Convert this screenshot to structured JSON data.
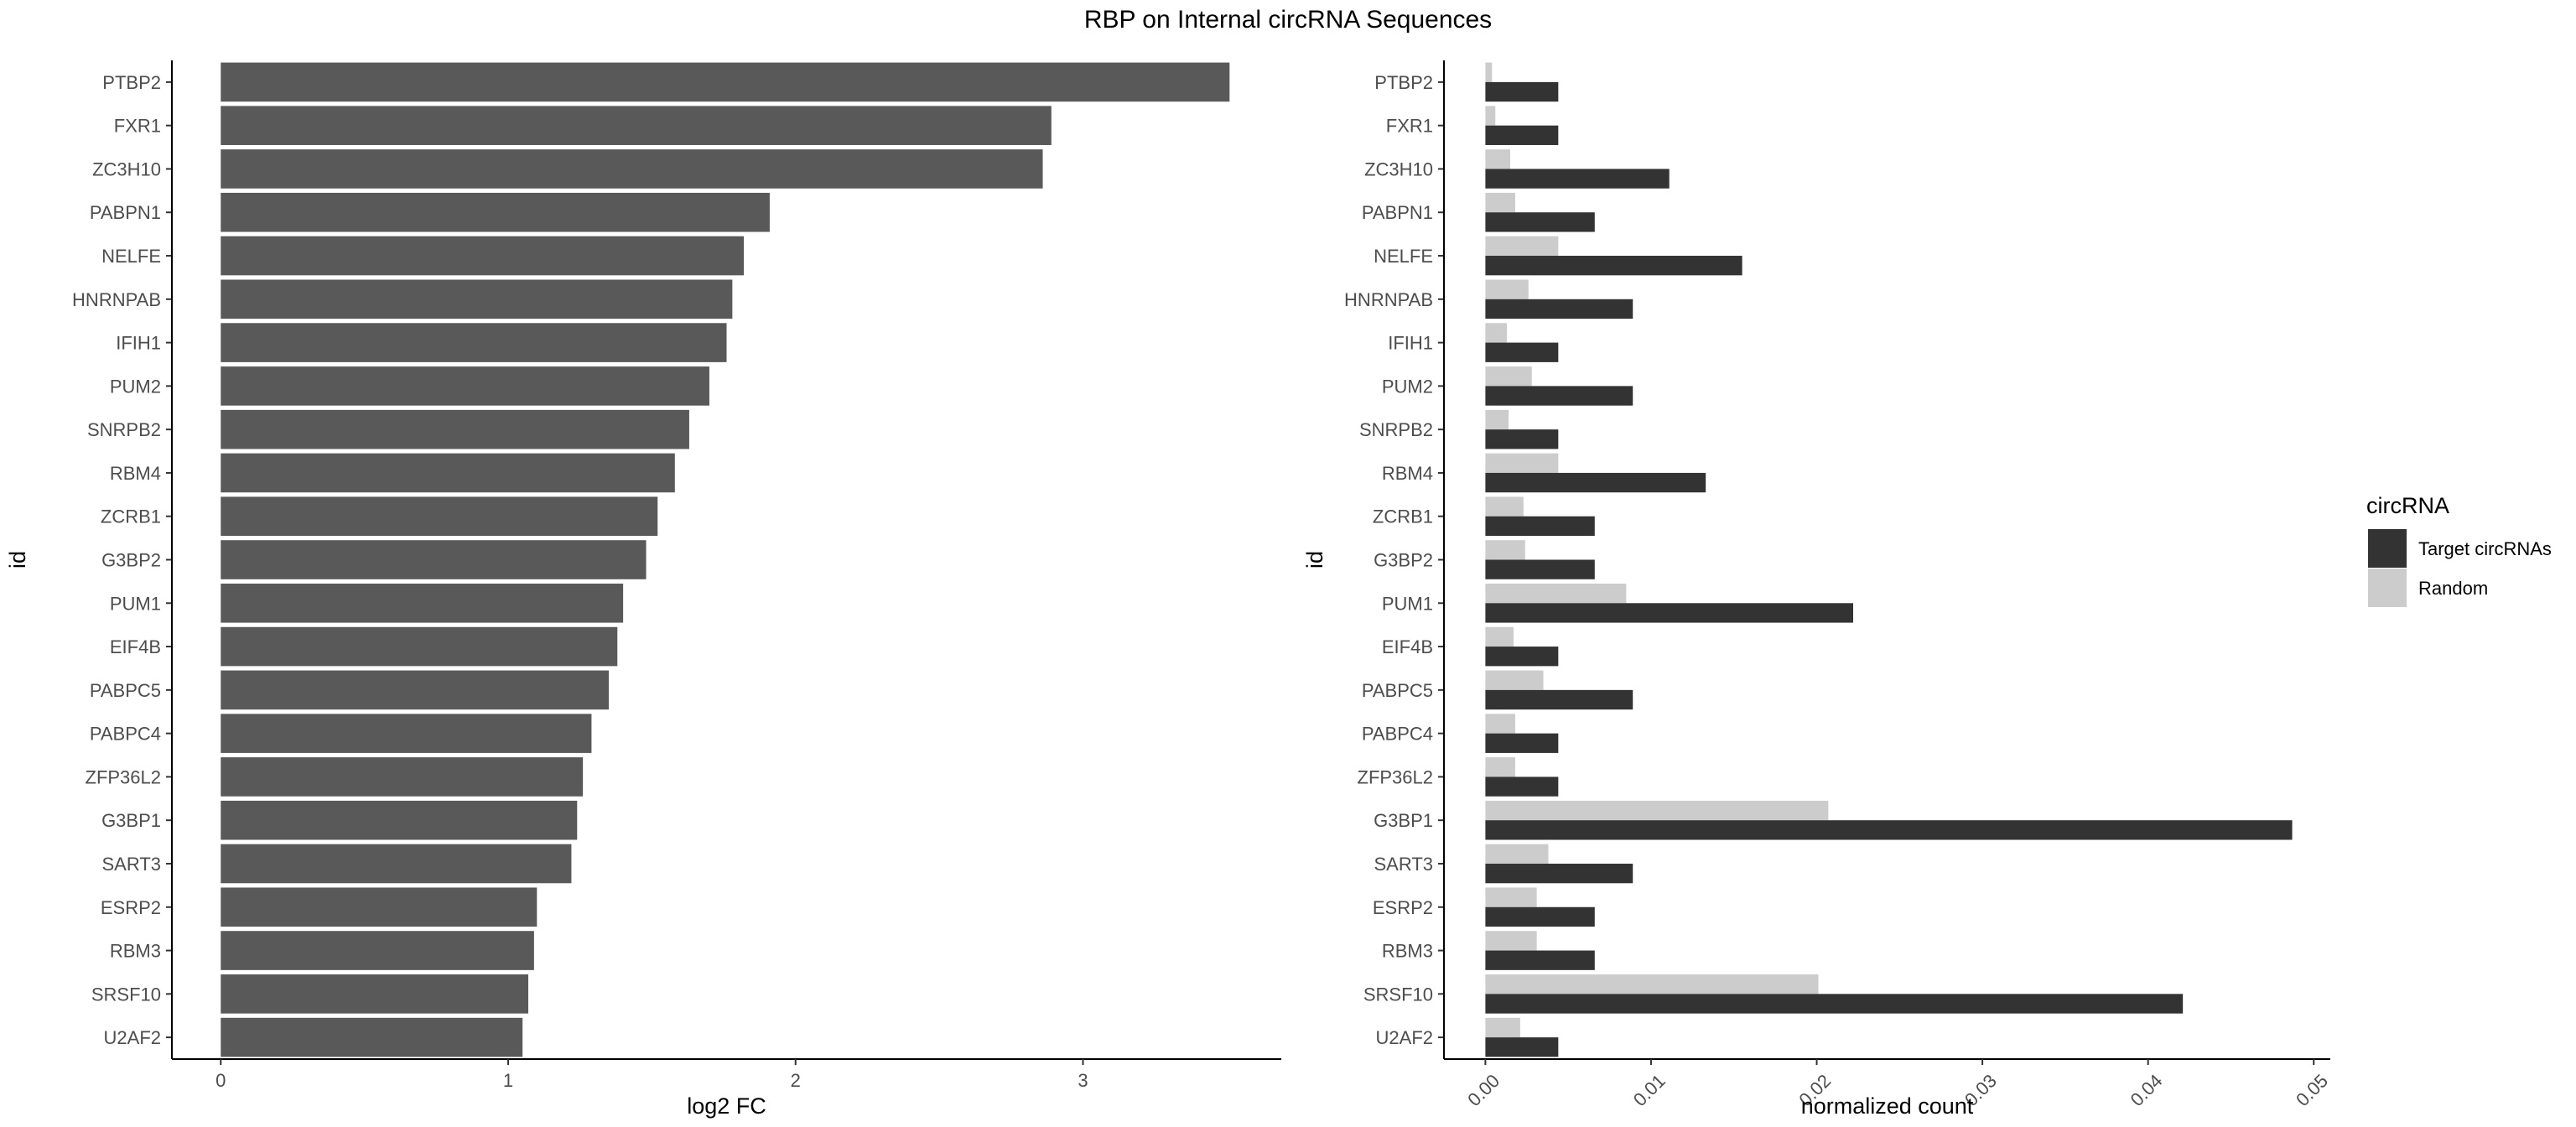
{
  "title": "RBP on Internal circRNA Sequences",
  "chart_data": [
    {
      "type": "bar",
      "orientation": "horizontal",
      "categories": [
        "PTBP2",
        "FXR1",
        "ZC3H10",
        "PABPN1",
        "NELFE",
        "HNRNPAB",
        "IFIH1",
        "PUM2",
        "SNRPB2",
        "RBM4",
        "ZCRB1",
        "G3BP2",
        "PUM1",
        "EIF4B",
        "PABPC5",
        "PABPC4",
        "ZFP36L2",
        "G3BP1",
        "SART3",
        "ESRP2",
        "RBM3",
        "SRSF10",
        "U2AF2"
      ],
      "values": [
        3.51,
        2.89,
        2.86,
        1.91,
        1.82,
        1.78,
        1.76,
        1.7,
        1.63,
        1.58,
        1.52,
        1.48,
        1.4,
        1.38,
        1.35,
        1.29,
        1.26,
        1.24,
        1.22,
        1.1,
        1.09,
        1.07,
        1.05
      ],
      "xlabel": "log2 FC",
      "ylabel": "id",
      "xlim": [
        -0.17,
        3.69
      ],
      "xticks": [
        "0",
        "1",
        "2",
        "3"
      ],
      "grid": false,
      "color": "#595959"
    },
    {
      "type": "bar",
      "orientation": "horizontal",
      "grouped": true,
      "categories": [
        "PTBP2",
        "FXR1",
        "ZC3H10",
        "PABPN1",
        "NELFE",
        "HNRNPAB",
        "IFIH1",
        "PUM2",
        "SNRPB2",
        "RBM4",
        "ZCRB1",
        "G3BP2",
        "PUM1",
        "EIF4B",
        "PABPC5",
        "PABPC4",
        "ZFP36L2",
        "G3BP1",
        "SART3",
        "ESRP2",
        "RBM3",
        "SRSF10",
        "U2AF2"
      ],
      "series": [
        {
          "name": "Target circRNAs",
          "color": "#333333",
          "values": [
            0.0044,
            0.0044,
            0.0111,
            0.0066,
            0.0155,
            0.0089,
            0.0044,
            0.0089,
            0.0044,
            0.0133,
            0.0066,
            0.0066,
            0.0222,
            0.0044,
            0.0089,
            0.0044,
            0.0044,
            0.0487,
            0.0089,
            0.0066,
            0.0066,
            0.0421,
            0.0044
          ]
        },
        {
          "name": "Random",
          "color": "#cccccc",
          "values": [
            0.0004,
            0.0006,
            0.0015,
            0.0018,
            0.0044,
            0.0026,
            0.0013,
            0.0028,
            0.0014,
            0.0044,
            0.0023,
            0.0024,
            0.0085,
            0.0017,
            0.0035,
            0.0018,
            0.0018,
            0.0207,
            0.0038,
            0.0031,
            0.0031,
            0.0201,
            0.0021
          ]
        }
      ],
      "xlabel": "normalized count",
      "ylabel": "id",
      "xlim": [
        -0.0025,
        0.051
      ],
      "xticks": [
        "0.00",
        "0.01",
        "0.02",
        "0.03",
        "0.04",
        "0.05"
      ],
      "legend_title": "circRNA",
      "legend_position": "right",
      "grid": false
    }
  ]
}
